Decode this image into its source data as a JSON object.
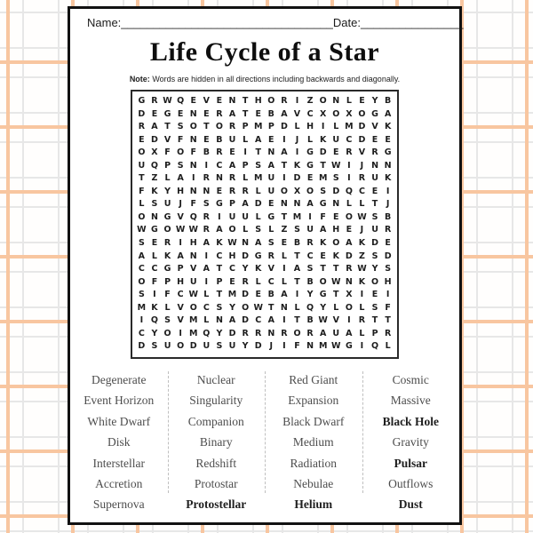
{
  "header": {
    "name_label": "Name:",
    "name_line": "_________________________________",
    "date_label": "Date:",
    "date_line": "________________"
  },
  "title": "Life Cycle of a Star",
  "note": {
    "prefix": "Note:",
    "text": "Words are hidden in all directions including backwards and diagonally."
  },
  "grid": {
    "rows": 20,
    "cols": 20,
    "letters": [
      "GRWQEVENTHORIZONLEYB",
      "DEGENERATEBAVCXOXOGA",
      "RATSOTORPMPDLHILMDVK",
      "EDVFNEBULAEIJLKUCDEE",
      "OXFOFBREITNAIGDERVRG",
      "UQPSNICAPSATKGTWIJNN",
      "TZLAIRNRLMUIDEMSIRUK",
      "FKYHNNERRLUOXOSDQCEI",
      "LSUJFSGPADENNAGNLLTJ",
      "ONGVQRIUULGTMIFEOWSB",
      "WGOWWRAOLSLZSUAHEJUR",
      "SERIHAKWNASEBRKOAKDE",
      "ALKANICHDGRLTCEKDZSD",
      "CCGPVATCYKVIASTTRWYS",
      "OFPHUIPERLCLTBOWNKOH",
      "SIFCWLTMDEBAIYGTXIEI",
      "MKLVOCSYOWTNLQYLOLSF",
      "IQSVMLNADCAITBWVIRTT",
      "CYOIMQYDRRNRORAUALPR",
      "DSUODUSUYDJIFNMWGIQL"
    ]
  },
  "word_list": {
    "columns": [
      [
        "Degenerate",
        "Event Horizon",
        "White Dwarf",
        "Disk",
        "Interstellar",
        "Accretion",
        "Supernova"
      ],
      [
        "Nuclear",
        "Singularity",
        "Companion",
        "Binary",
        "Redshift",
        "Protostar",
        "Protostellar"
      ],
      [
        "Red Giant",
        "Expansion",
        "Black Dwarf",
        "Medium",
        "Radiation",
        "Nebulae",
        "Helium"
      ],
      [
        "Cosmic",
        "Massive",
        "Black Hole",
        "Gravity",
        "Pulsar",
        "Outflows",
        "Dust"
      ]
    ],
    "bold_words": [
      "Black Hole",
      "Pulsar",
      "Dust",
      "Protostellar",
      "Helium"
    ]
  },
  "colors": {
    "plaid_orange": "#f8c6a0",
    "plaid_gray": "#e7e7e7",
    "page_border": "#111111",
    "grid_letter": "#1d1d1d",
    "word_text": "#4d4d4d"
  }
}
